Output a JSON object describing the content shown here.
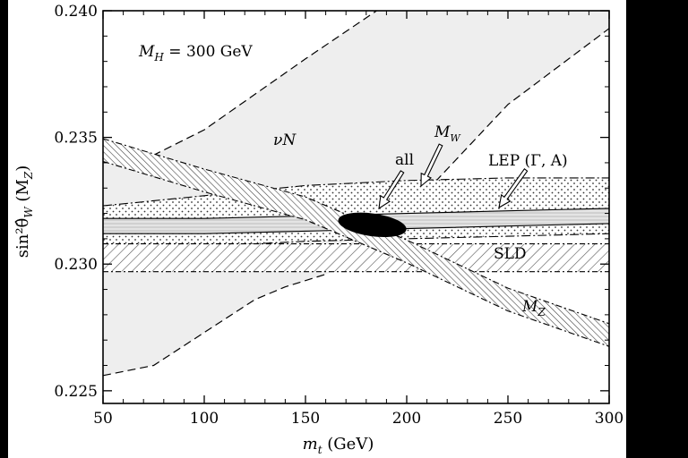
{
  "chart_data": {
    "type": "area",
    "title": "",
    "xlabel": "m_t (GeV)",
    "xlabel_main": "m",
    "xlabel_sub": "t",
    "xlabel_unit": " (GeV)",
    "ylabel": "sin²θ̂_W (M_Z)",
    "ylabel_main": "sin²θ̂",
    "ylabel_sub": "W",
    "ylabel_tail": " (M",
    "ylabel_sub2": "Z",
    "ylabel_close": ")",
    "xlim": [
      50,
      300
    ],
    "ylim": [
      0.2245,
      0.24
    ],
    "xticks": [
      50,
      100,
      150,
      200,
      250,
      300
    ],
    "yticks": [
      0.225,
      0.23,
      0.235,
      0.24
    ],
    "ytick_labels": [
      "0.225",
      "0.230",
      "0.235",
      "0.240"
    ],
    "grid": false,
    "annotations": {
      "mh_label": "M",
      "mh_sub": "H",
      "mh_value": " = 300 GeV",
      "nuN": "νN",
      "mw": "M",
      "mw_sub": "W",
      "all": "all",
      "lep": "LEP (Γ, A)",
      "sld": "SLD",
      "mz": "M",
      "mz_sub": "Z"
    },
    "series": [
      {
        "name": "νN",
        "fill": "#eeeeee",
        "upper": [
          [
            50,
            0.2341
          ],
          [
            75,
            0.2343
          ],
          [
            100,
            0.2353
          ],
          [
            150,
            0.2381
          ],
          [
            200,
            0.2408
          ],
          [
            215,
            0.2418
          ]
        ],
        "lower": [
          [
            50,
            0.2256
          ],
          [
            75,
            0.226
          ],
          [
            100,
            0.2273
          ],
          [
            125,
            0.2286
          ],
          [
            140,
            0.2291
          ],
          [
            160,
            0.2296
          ]
        ],
        "upper_right": [
          [
            210,
            0.2329
          ],
          [
            250,
            0.2363
          ],
          [
            300,
            0.2393
          ]
        ]
      },
      {
        "name": "M_Z",
        "center": [
          [
            50,
            0.2345
          ],
          [
            100,
            0.2333
          ],
          [
            150,
            0.2322
          ],
          [
            200,
            0.2305
          ],
          [
            250,
            0.2286
          ],
          [
            300,
            0.2272
          ]
        ],
        "half_width": 0.00045
      },
      {
        "name": "M_W",
        "upper": [
          [
            50,
            0.2323
          ],
          [
            100,
            0.2327
          ],
          [
            150,
            0.2331
          ],
          [
            200,
            0.2333
          ],
          [
            250,
            0.2334
          ],
          [
            300,
            0.2334
          ]
        ],
        "lower": [
          [
            50,
            0.2303
          ],
          [
            100,
            0.2307
          ],
          [
            150,
            0.2309
          ],
          [
            200,
            0.231
          ],
          [
            250,
            0.2311
          ],
          [
            300,
            0.2312
          ]
        ]
      },
      {
        "name": "LEP (Γ, A)",
        "upper": [
          [
            50,
            0.2318
          ],
          [
            100,
            0.2318
          ],
          [
            150,
            0.2319
          ],
          [
            200,
            0.232
          ],
          [
            250,
            0.2321
          ],
          [
            300,
            0.2322
          ]
        ],
        "lower": [
          [
            50,
            0.2312
          ],
          [
            100,
            0.2312
          ],
          [
            150,
            0.2313
          ],
          [
            200,
            0.2314
          ],
          [
            250,
            0.2315
          ],
          [
            300,
            0.2316
          ]
        ]
      },
      {
        "name": "SLD",
        "upper": [
          [
            50,
            0.2308
          ],
          [
            300,
            0.2308
          ]
        ],
        "lower": [
          [
            50,
            0.2297
          ],
          [
            300,
            0.2297
          ]
        ]
      },
      {
        "name": "all",
        "ellipse": {
          "cx": 183,
          "cy": 0.23155,
          "rx": 17,
          "ry": 0.00045,
          "tilt_deg": -8
        }
      }
    ]
  }
}
